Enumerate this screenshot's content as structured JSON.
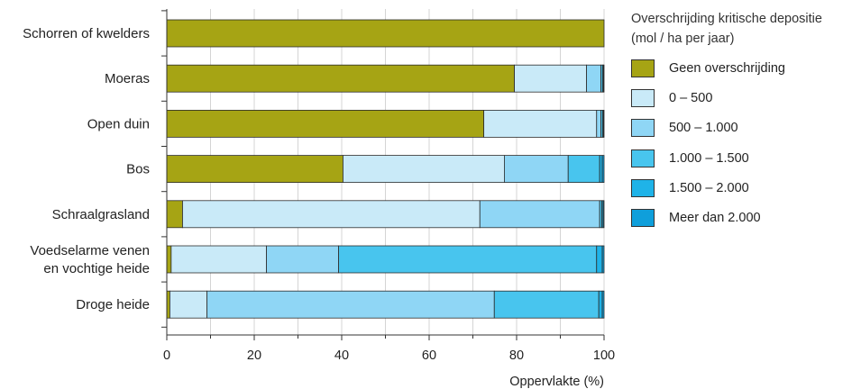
{
  "chart_data": {
    "type": "bar",
    "orientation": "horizontal",
    "stacked": true,
    "categories": [
      "Schorren of kwelders",
      "Moeras",
      "Open duin",
      "Bos",
      "Schraalgrasland",
      "Voedselarme venen\nen vochtige heide",
      "Droge heide"
    ],
    "series": [
      {
        "name": "Geen overschrijding",
        "color": "#A6A414",
        "values": [
          100,
          79.5,
          72.5,
          40.3,
          3.6,
          1.0,
          0.7
        ]
      },
      {
        "name": "0 – 500",
        "color": "#C9EAF8",
        "values": [
          0,
          16.5,
          25.8,
          36.9,
          68.0,
          21.8,
          8.5
        ]
      },
      {
        "name": "500 – 1.000",
        "color": "#8FD6F5",
        "values": [
          0,
          3.3,
          1.0,
          14.6,
          27.4,
          16.5,
          65.7
        ]
      },
      {
        "name": "1.000 – 1.500",
        "color": "#48C5EE",
        "values": [
          0,
          0.4,
          0.4,
          7.2,
          0.5,
          59.0,
          23.9
        ]
      },
      {
        "name": "1.500 – 2.000",
        "color": "#1FB3E8",
        "values": [
          0,
          0.2,
          0.2,
          0.6,
          0.3,
          1.3,
          0.8
        ]
      },
      {
        "name": "Meer dan 2.000",
        "color": "#0F9FDB",
        "values": [
          0,
          0.1,
          0.1,
          0.4,
          0.2,
          0.4,
          0.4
        ]
      }
    ],
    "xlabel": "Oppervlakte (%)",
    "xlim": [
      0,
      100
    ],
    "xticks": [
      0,
      20,
      40,
      60,
      80,
      100
    ],
    "grid": true,
    "legend_title": "Overschrijding kritische depositie\n(mol / ha per jaar)",
    "legend_position": "right"
  }
}
